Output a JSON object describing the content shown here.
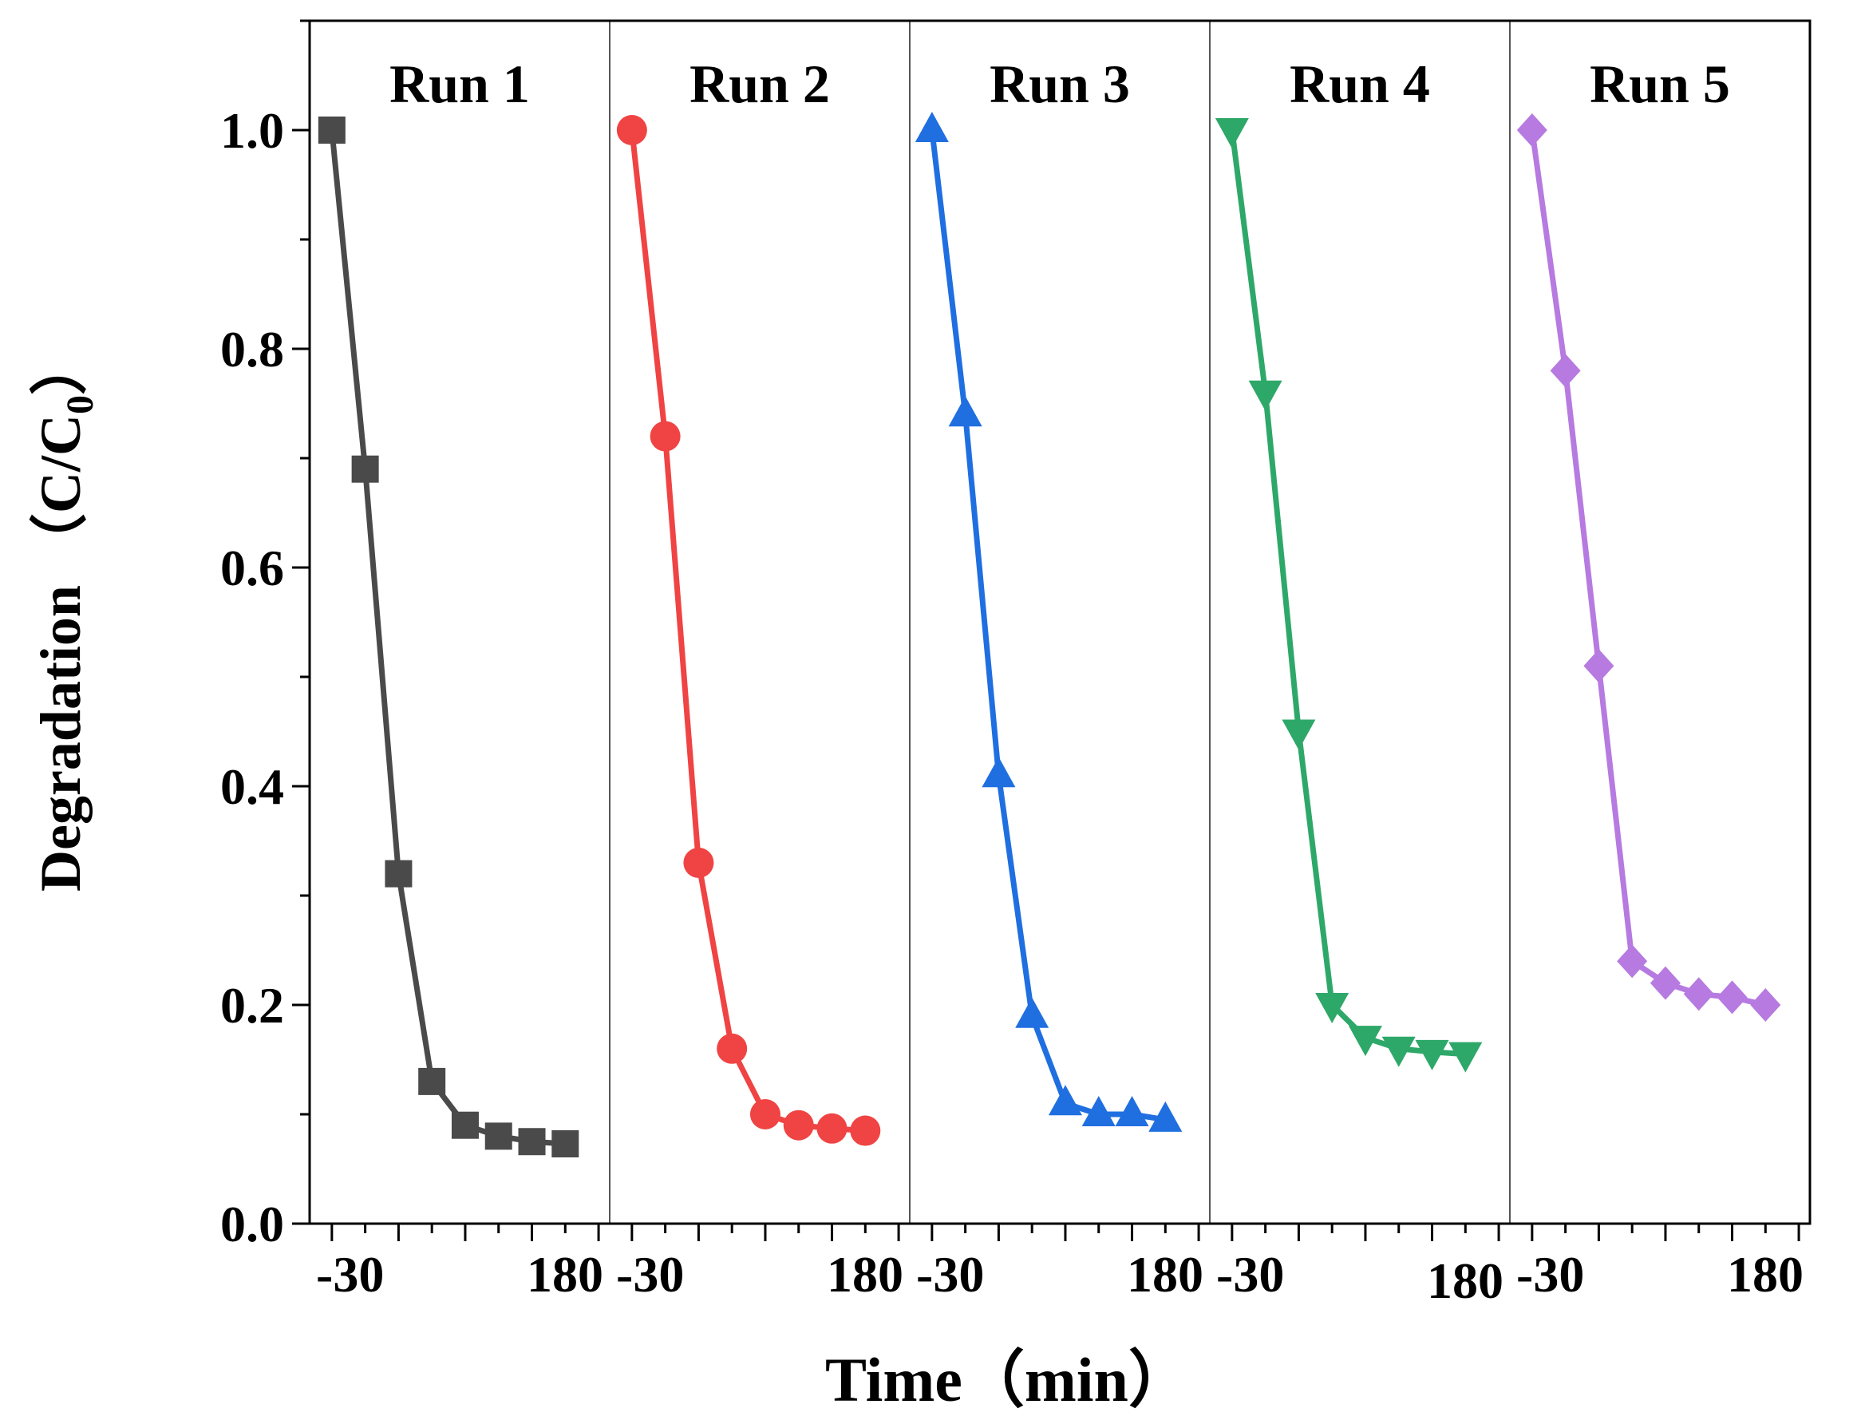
{
  "chart_data": {
    "type": "line",
    "xlabel": "Time（min）",
    "ylabel": "Degradation （C/C",
    "ylabel_subscript": "0",
    "ylabel_close": "）",
    "ylim": [
      0.0,
      1.1
    ],
    "yticks": [
      "0.0",
      "0.2",
      "0.4",
      "0.6",
      "0.8",
      "1.0"
    ],
    "ytick_values": [
      0.0,
      0.2,
      0.4,
      0.6,
      0.8,
      1.0
    ],
    "x": [
      -30,
      0,
      30,
      60,
      90,
      120,
      150,
      180
    ],
    "xlim": [
      -50,
      220
    ],
    "xtick_labels": [
      "-30",
      "180"
    ],
    "runs": [
      {
        "name": "Run 1",
        "color": "#4a4a4a",
        "marker": "square",
        "values": [
          1.0,
          0.69,
          0.32,
          0.13,
          0.09,
          0.08,
          0.075,
          0.073
        ]
      },
      {
        "name": "Run 2",
        "color": "#f04343",
        "marker": "circle",
        "values": [
          1.0,
          0.72,
          0.33,
          0.16,
          0.1,
          0.09,
          0.087,
          0.085
        ]
      },
      {
        "name": "Run 3",
        "color": "#1f6fe0",
        "marker": "triangle-up",
        "values": [
          1.0,
          0.74,
          0.41,
          0.19,
          0.11,
          0.1,
          0.1,
          0.095
        ]
      },
      {
        "name": "Run 4",
        "color": "#2ea869",
        "marker": "triangle-down",
        "values": [
          1.0,
          0.76,
          0.45,
          0.2,
          0.17,
          0.16,
          0.157,
          0.155
        ]
      },
      {
        "name": "Run 5",
        "color": "#b67ae0",
        "marker": "diamond",
        "values": [
          1.0,
          0.78,
          0.51,
          0.24,
          0.22,
          0.21,
          0.207,
          0.2
        ]
      }
    ]
  }
}
